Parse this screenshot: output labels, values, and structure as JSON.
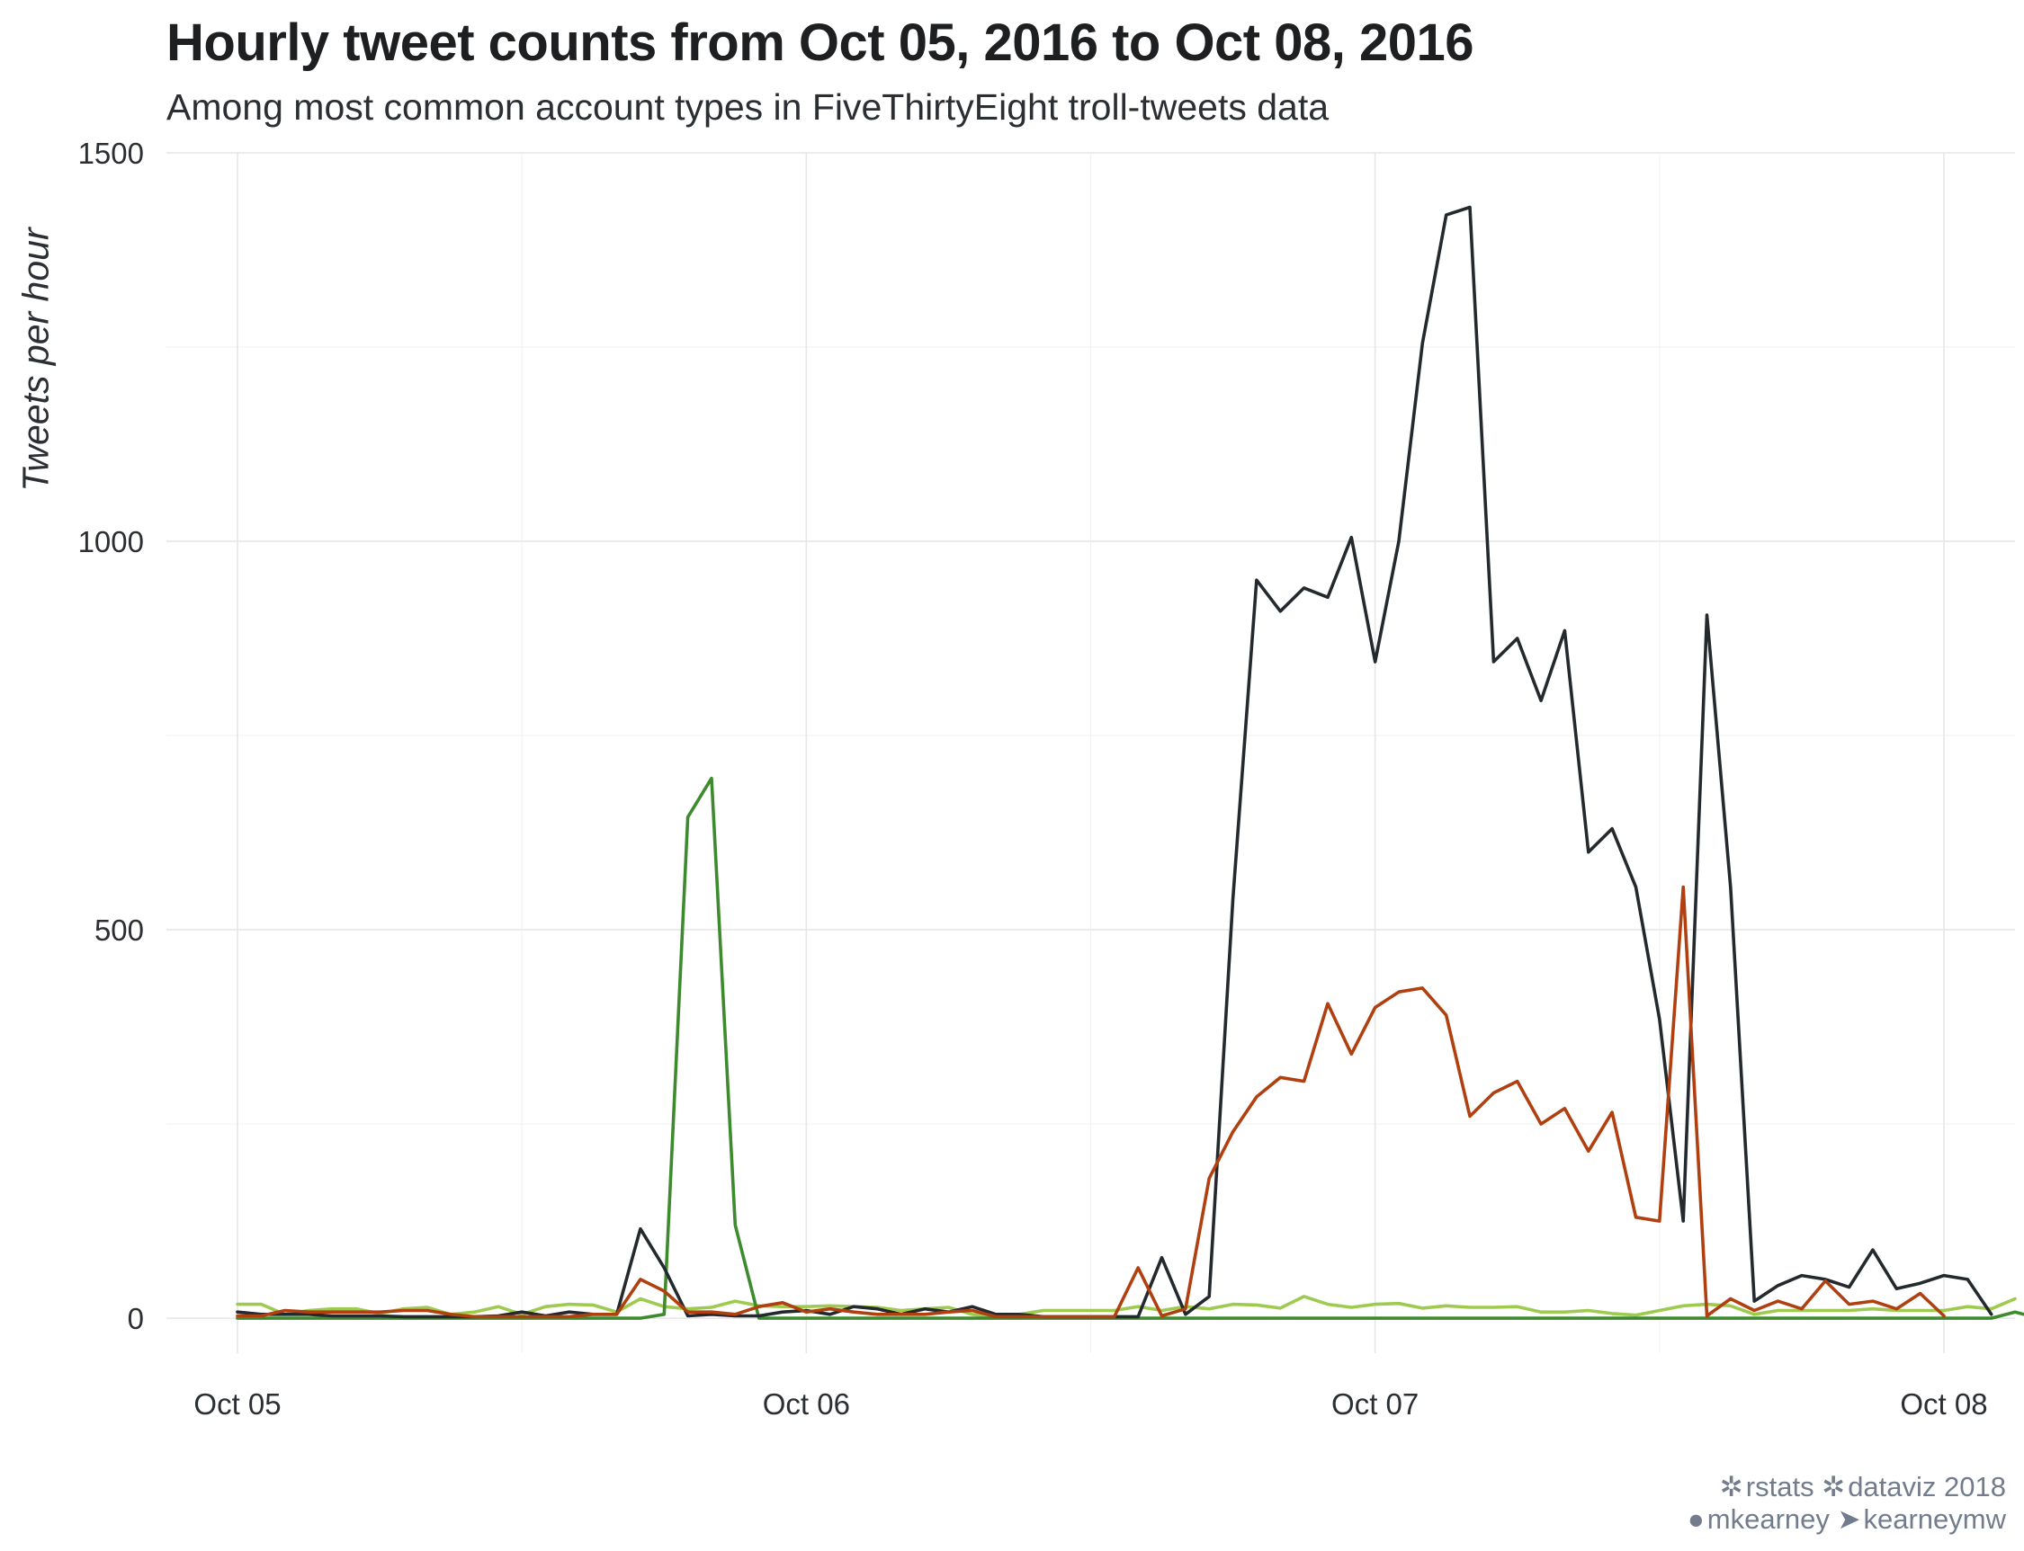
{
  "chart_data": {
    "type": "line",
    "title": "Hourly tweet counts from Oct 05, 2016 to Oct 08, 2016",
    "subtitle": "Among most common account types in FiveThirtyEight troll-tweets data",
    "xlabel": "",
    "ylabel": "Tweets per hour",
    "xlim": [
      "2016-10-04T21:00",
      "2016-10-08T03:00"
    ],
    "ylim": [
      -45,
      1500
    ],
    "x_ticks": [
      "Oct 05",
      "Oct 06",
      "Oct 07",
      "Oct 08"
    ],
    "y_ticks": [
      0,
      500,
      1000,
      1500
    ],
    "x_ticks_values": [
      "2016-10-05T00:00",
      "2016-10-06T00:00",
      "2016-10-07T00:00",
      "2016-10-08T00:00"
    ],
    "grid": true,
    "legend": "none",
    "x_start": "2016-10-05T00:00",
    "x_step_hours": 1,
    "series": [
      {
        "color": "#9ecb4f",
        "values": [
          18,
          18,
          5,
          10,
          12,
          12,
          6,
          12,
          14,
          5,
          8,
          15,
          5,
          15,
          18,
          17,
          8,
          25,
          15,
          12,
          14,
          22,
          16,
          15,
          15,
          16,
          15,
          14,
          10,
          12,
          14,
          5,
          2,
          5,
          10,
          10,
          10,
          10,
          15,
          10,
          15,
          12,
          18,
          17,
          13,
          28,
          18,
          14,
          18,
          19,
          13,
          16,
          14,
          14,
          15,
          8,
          8,
          10,
          6,
          4,
          10,
          16,
          18,
          16,
          5,
          10,
          10,
          10,
          10,
          12,
          10,
          10,
          10,
          15,
          12,
          25
        ]
      },
      {
        "color": "#3e8a2e",
        "values": [
          0,
          0,
          0,
          0,
          0,
          0,
          0,
          0,
          0,
          0,
          0,
          0,
          0,
          0,
          0,
          0,
          0,
          0,
          5,
          645,
          695,
          120,
          0,
          0,
          0,
          0,
          0,
          0,
          0,
          0,
          0,
          0,
          0,
          0,
          0,
          0,
          0,
          0,
          0,
          0,
          0,
          0,
          0,
          0,
          0,
          0,
          0,
          0,
          0,
          0,
          0,
          0,
          0,
          0,
          0,
          0,
          0,
          0,
          0,
          0,
          0,
          0,
          0,
          0,
          0,
          0,
          0,
          0,
          0,
          0,
          0,
          0,
          0,
          0,
          0,
          8,
          0,
          0,
          2,
          0,
          0,
          0,
          0,
          0,
          0,
          0,
          0,
          0,
          0,
          0,
          0,
          0
        ]
      },
      {
        "color": "#24292e",
        "values": [
          8,
          5,
          5,
          5,
          3,
          3,
          3,
          2,
          2,
          2,
          2,
          3,
          8,
          3,
          8,
          5,
          5,
          115,
          65,
          3,
          5,
          3,
          3,
          8,
          10,
          5,
          15,
          12,
          5,
          12,
          8,
          15,
          5,
          5,
          2,
          2,
          2,
          2,
          2,
          78,
          5,
          28,
          540,
          950,
          910,
          940,
          928,
          1005,
          845,
          1000,
          1255,
          1420,
          1430,
          845,
          875,
          795,
          885,
          600,
          630,
          555,
          385,
          125,
          905,
          555,
          22,
          42,
          55,
          50,
          40,
          88,
          38,
          45,
          55,
          50,
          5
        ]
      },
      {
        "color": "#b04010",
        "values": [
          3,
          3,
          10,
          8,
          8,
          8,
          8,
          10,
          10,
          5,
          2,
          2,
          2,
          2,
          2,
          5,
          5,
          50,
          35,
          8,
          8,
          5,
          15,
          20,
          8,
          12,
          8,
          5,
          5,
          5,
          8,
          10,
          2,
          2,
          2,
          2,
          2,
          2,
          65,
          3,
          12,
          180,
          240,
          285,
          310,
          305,
          405,
          340,
          400,
          420,
          425,
          390,
          260,
          290,
          305,
          250,
          270,
          215,
          265,
          130,
          125,
          555,
          3,
          25,
          10,
          22,
          12,
          48,
          18,
          22,
          12,
          32,
          3
        ]
      }
    ]
  },
  "caption": {
    "line1_a": "rstats",
    "line1_b": "dataviz 2018",
    "line2_a": "mkearney",
    "line2_b": "kearneymw"
  },
  "icons": {
    "rstats": "gear-icon",
    "dataviz": "gear-icon",
    "github": "github-icon",
    "twitter": "twitter-icon"
  }
}
